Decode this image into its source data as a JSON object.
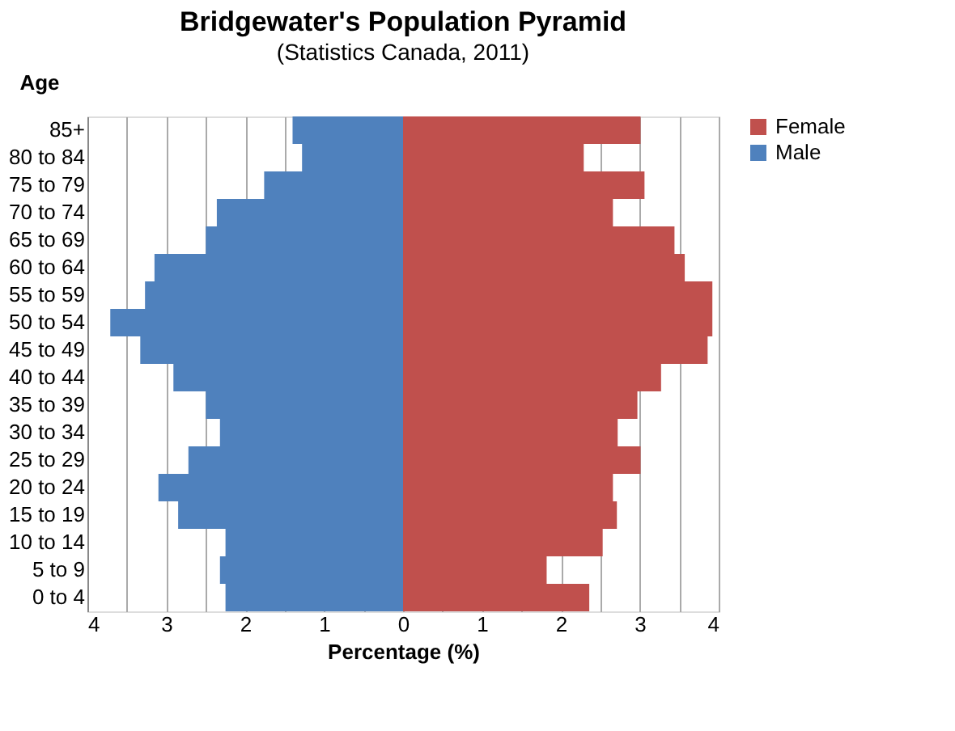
{
  "chart_data": {
    "type": "bar",
    "orientation": "horizontal",
    "title": "Bridgewater's  Population Pyramid",
    "subtitle": "(Statistics Canada, 2011)",
    "ylabel": "Age",
    "xlabel": "Percentage (%)",
    "categories": [
      "85+",
      "80 to 84",
      "75 to 79",
      "70 to 74",
      "65 to 69",
      "60 to 64",
      "55 to 59",
      "50 to 54",
      "45 to 49",
      "40 to 44",
      "35 to 39",
      "30 to 34",
      "25 to 29",
      "20 to 24",
      "15 to 19",
      "10 to 14",
      "5 to 9",
      "0 to 4"
    ],
    "series": [
      {
        "name": "Female",
        "color": "#c0504d",
        "values": [
          3.01,
          2.29,
          3.06,
          2.66,
          3.44,
          3.57,
          3.92,
          3.92,
          3.86,
          3.27,
          2.97,
          2.72,
          3.01,
          2.66,
          2.71,
          2.53,
          1.82,
          2.36
        ]
      },
      {
        "name": "Male",
        "color": "#4f81bd",
        "values": [
          -1.4,
          -1.28,
          -1.76,
          -2.36,
          -2.5,
          -3.15,
          -3.27,
          -3.71,
          -3.33,
          -2.91,
          -2.5,
          -2.32,
          -2.72,
          -3.1,
          -2.85,
          -2.25,
          -2.32,
          -2.25
        ]
      }
    ],
    "xlim": [
      -4,
      4
    ],
    "xticks": [
      {
        "value": -4,
        "label": "4"
      },
      {
        "value": -3.5,
        "label": null
      },
      {
        "value": -3,
        "label": "3"
      },
      {
        "value": -2.5,
        "label": null
      },
      {
        "value": -2,
        "label": "2"
      },
      {
        "value": -1.5,
        "label": null
      },
      {
        "value": -1,
        "label": "1"
      },
      {
        "value": -0.5,
        "label": null
      },
      0,
      {
        "value": 0.5,
        "label": null
      },
      1,
      {
        "value": 1.5,
        "label": null
      },
      2,
      {
        "value": 2.5,
        "label": null
      },
      3,
      {
        "value": 3.5,
        "label": null
      },
      4
    ],
    "grid": "x",
    "legend": "right",
    "stacked": true
  }
}
